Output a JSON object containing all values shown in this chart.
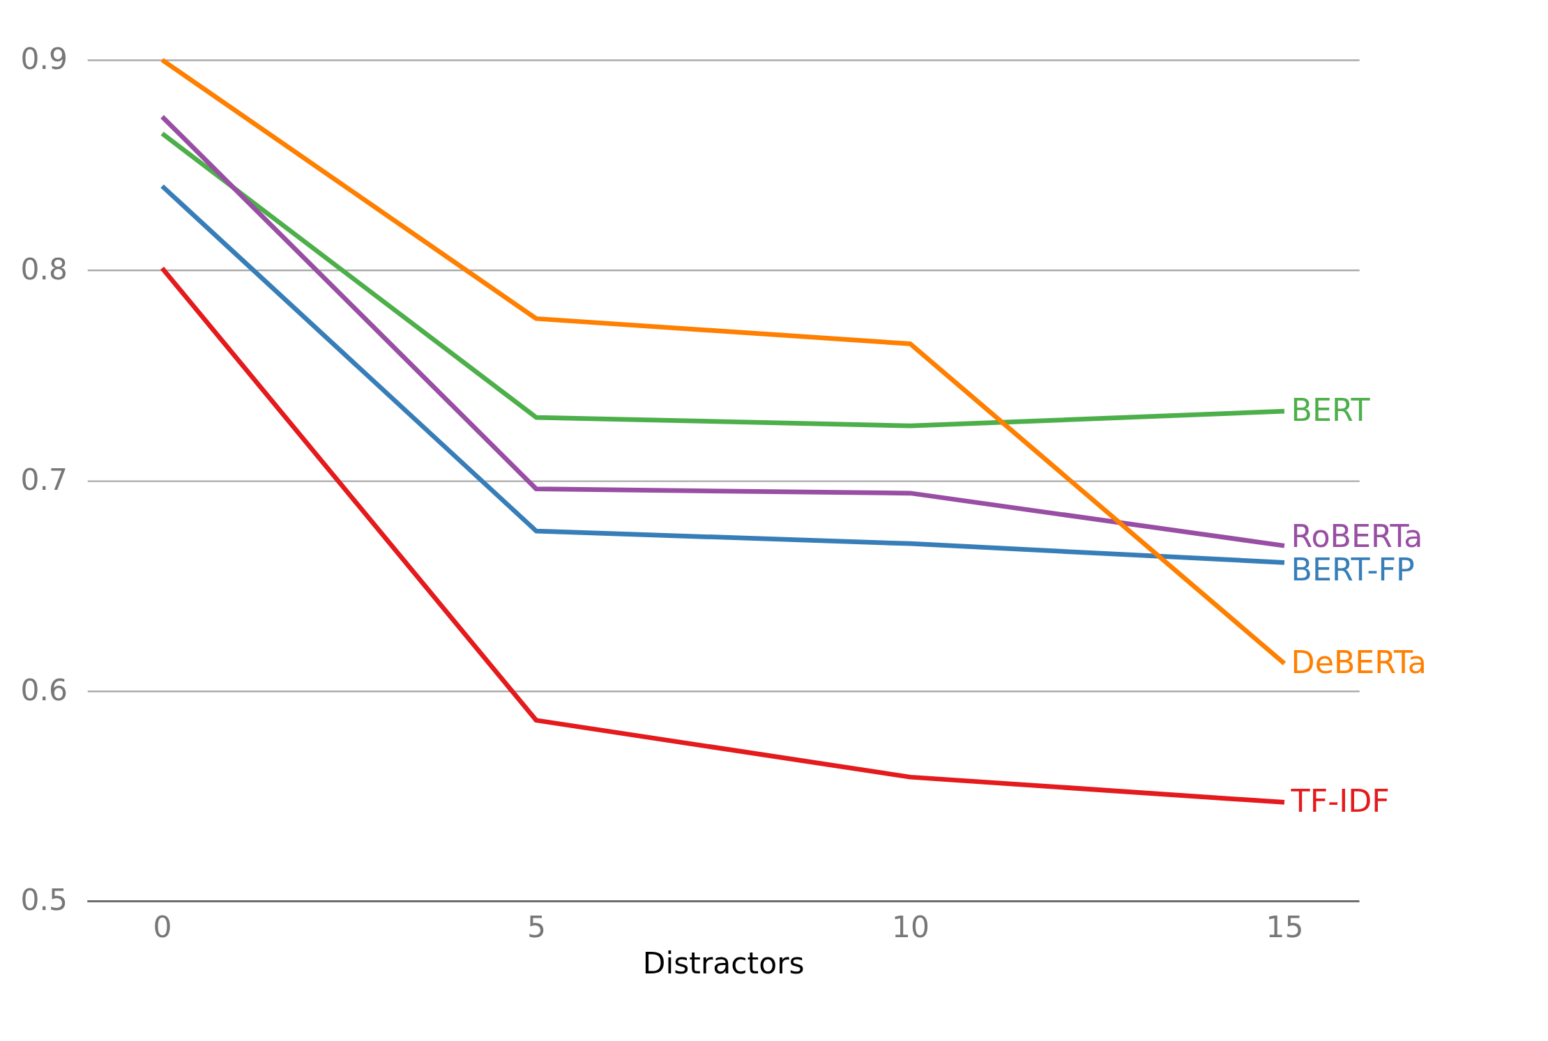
{
  "chart_data": {
    "type": "line",
    "xlabel": "Distractors",
    "x": [
      0,
      5,
      10,
      15
    ],
    "series": [
      {
        "name": "BERT",
        "color": "#4daf4a",
        "values": [
          0.865,
          0.73,
          0.726,
          0.733
        ]
      },
      {
        "name": "RoBERTa",
        "color": "#984ea3",
        "values": [
          0.873,
          0.696,
          0.694,
          0.669
        ]
      },
      {
        "name": "BERT-FP",
        "color": "#377eb8",
        "values": [
          0.84,
          0.676,
          0.67,
          0.661
        ]
      },
      {
        "name": "DeBERTa",
        "color": "#ff7f00",
        "values": [
          0.9,
          0.777,
          0.765,
          0.613
        ]
      },
      {
        "name": "TF-IDF",
        "color": "#e41a1c",
        "values": [
          0.801,
          0.586,
          0.559,
          0.547
        ]
      }
    ],
    "xlim": [
      -1,
      16
    ],
    "xticks": [
      0,
      5,
      10,
      15
    ],
    "ylim": [
      0.5,
      0.9
    ],
    "yticks": [
      0.5,
      0.6,
      0.7,
      0.8,
      0.9
    ],
    "grid": "y",
    "legend": false,
    "marker": "none",
    "line_style": "solid"
  }
}
